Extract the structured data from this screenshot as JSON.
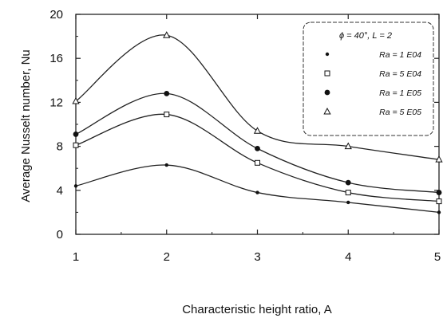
{
  "chart_data": {
    "type": "line",
    "xlabel": "Characteristic height ratio, A",
    "ylabel": "Average Nusselt number, Nu",
    "x": [
      1,
      2,
      3,
      4,
      5
    ],
    "xticks": [
      "1",
      "2",
      "3",
      "4",
      "5"
    ],
    "yticks": [
      "0",
      "4",
      "8",
      "12",
      "16",
      "20"
    ],
    "xlim": [
      1,
      5
    ],
    "ylim": [
      0,
      20
    ],
    "grid": false,
    "legend_position": "top-right",
    "legend_title": "ϕ = 40°, L = 2",
    "series": [
      {
        "name": "Ra = 1 E04",
        "marker": "small-dot",
        "values": [
          4.4,
          6.3,
          3.8,
          2.9,
          2.0
        ]
      },
      {
        "name": "Ra = 5 E04",
        "marker": "open-square",
        "values": [
          8.1,
          10.9,
          6.5,
          3.8,
          3.0
        ]
      },
      {
        "name": "Ra = 1 E05",
        "marker": "filled-circle",
        "values": [
          9.1,
          12.8,
          7.8,
          4.7,
          3.8
        ]
      },
      {
        "name": "Ra = 5 E05",
        "marker": "open-triangle",
        "values": [
          12.1,
          18.1,
          9.4,
          8.0,
          6.8
        ]
      }
    ]
  }
}
